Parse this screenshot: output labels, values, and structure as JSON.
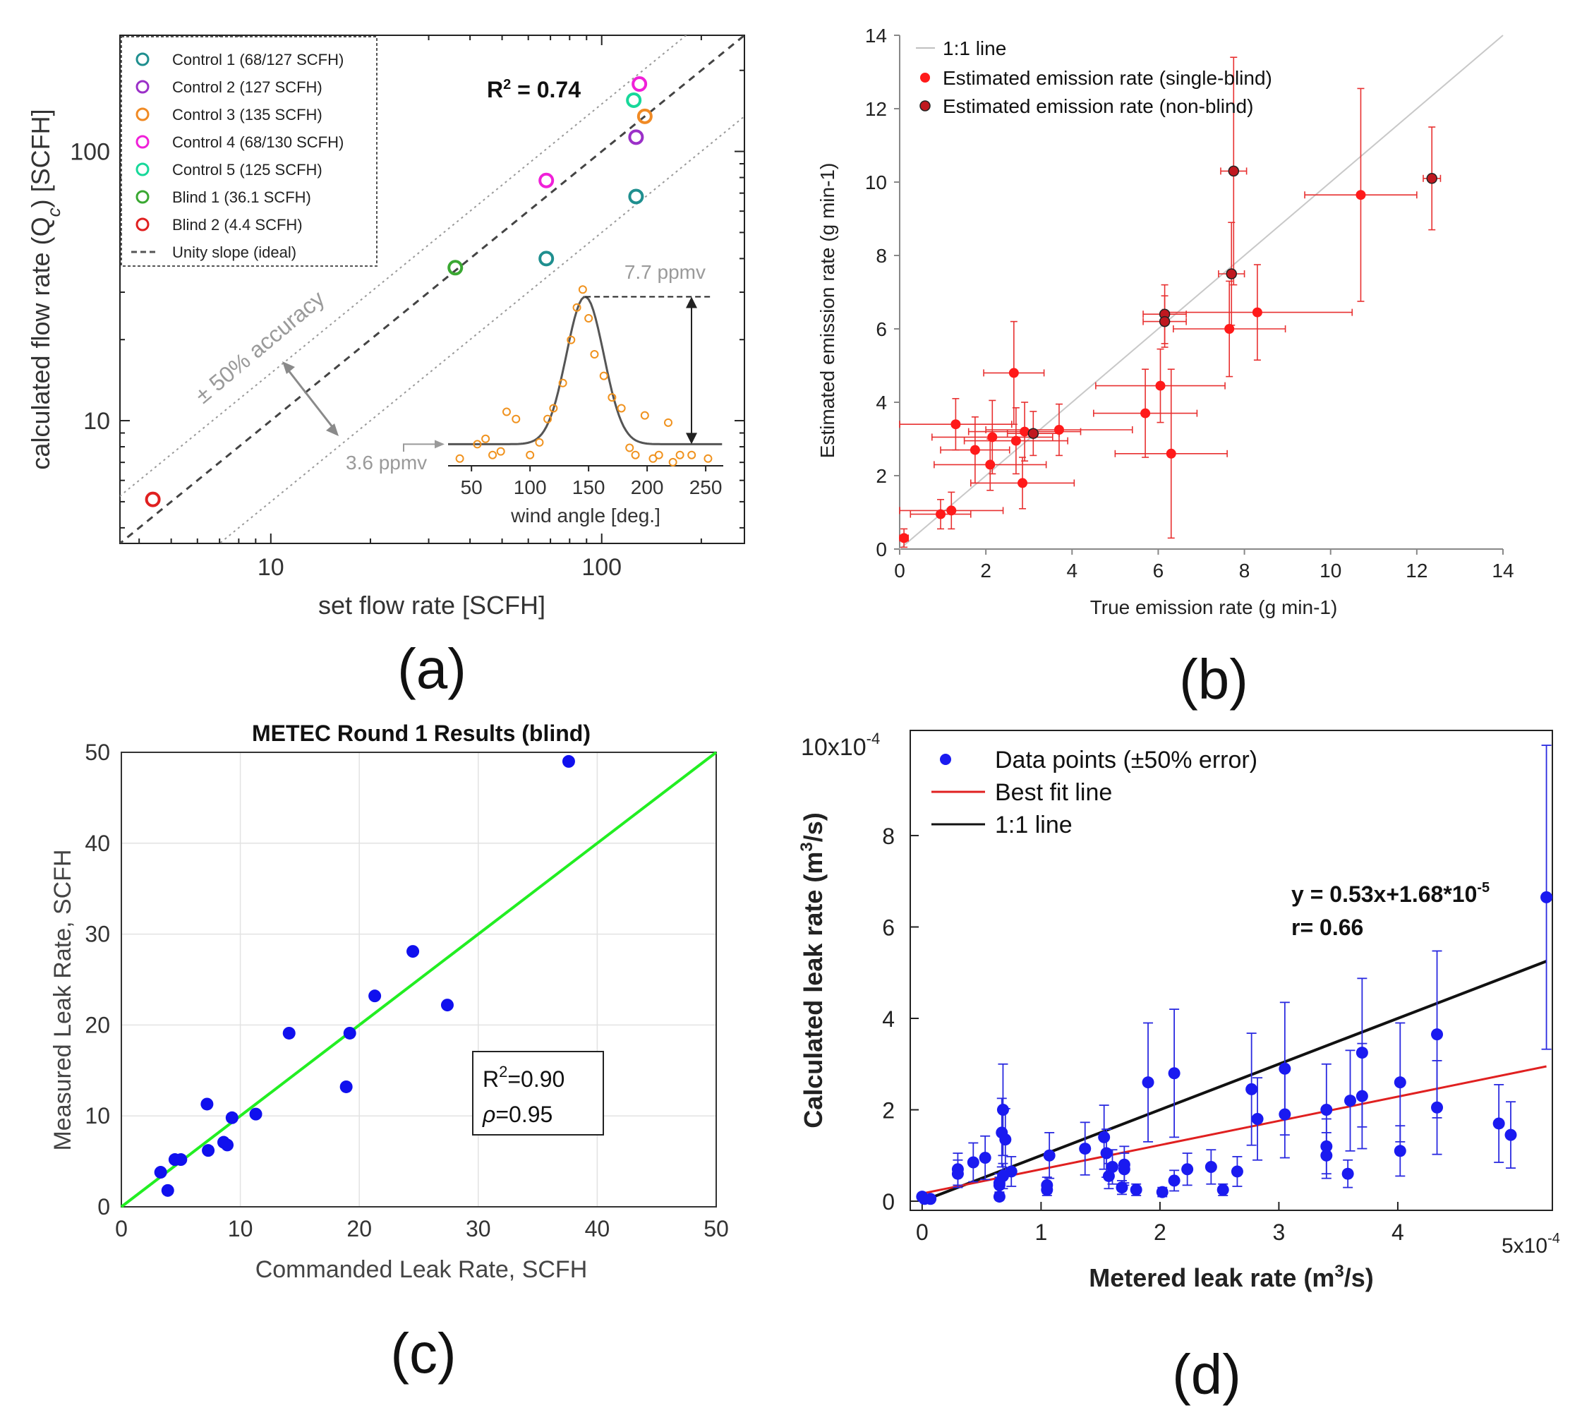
{
  "chart_data": [
    {
      "id": "a",
      "type": "scatter",
      "panel_label": "(a)",
      "xlabel": "set flow rate [SCFH]",
      "ylabel": "calculated flow rate (Q",
      "ylabel_sub": "c",
      "ylabel_end": ") [SCFH]",
      "xscale": "log",
      "yscale": "log",
      "xlim": [
        3.5,
        270
      ],
      "ylim": [
        3.5,
        270
      ],
      "xticks": [
        {
          "v": 10,
          "label": "10"
        },
        {
          "v": 100,
          "label": "100"
        }
      ],
      "yticks": [
        {
          "v": 10,
          "label": "10"
        },
        {
          "v": 100,
          "label": "100"
        }
      ],
      "r2_label": "R",
      "r2_sup": "2",
      "r2_value": " = 0.74",
      "accuracy_label": "± 50% accuracy",
      "legend_position": "top-left",
      "series": [
        {
          "name": "Control 1 (68/127 SCFH)",
          "color": "#1f8f8f",
          "points": [
            [
              68,
              40
            ],
            [
              127,
              68
            ]
          ]
        },
        {
          "name": "Control 2 (127 SCFH)",
          "color": "#9b30c8",
          "points": [
            [
              127,
              113
            ]
          ]
        },
        {
          "name": "Control 3 (135 SCFH)",
          "color": "#f08a24",
          "points": [
            [
              135,
              135
            ]
          ]
        },
        {
          "name": "Control 4 (68/130 SCFH)",
          "color": "#f020d8",
          "points": [
            [
              68,
              78
            ],
            [
              130,
              178
            ]
          ]
        },
        {
          "name": "Control 5 (125 SCFH)",
          "color": "#17d89a",
          "points": [
            [
              125,
              155
            ]
          ]
        },
        {
          "name": "Blind 1 (36.1 SCFH)",
          "color": "#3aa832",
          "points": [
            [
              36.1,
              37
            ]
          ]
        },
        {
          "name": "Blind 2 (4.4 SCFH)",
          "color": "#e02020",
          "points": [
            [
              4.4,
              5.1
            ]
          ]
        }
      ],
      "unity_label": "Unity slope (ideal)",
      "inset": {
        "xlabel": "wind angle [deg.]",
        "xlim": [
          30,
          265
        ],
        "xticks": [
          50,
          100,
          150,
          200,
          250
        ],
        "baseline_label": "3.6 ppmv",
        "peak_label": "7.7 ppmv",
        "gauss_center": 147,
        "gauss_sigma": 16,
        "points": [
          [
            40,
            3.2
          ],
          [
            55,
            3.6
          ],
          [
            62,
            3.75
          ],
          [
            68,
            3.3
          ],
          [
            75,
            3.4
          ],
          [
            80,
            4.5
          ],
          [
            88,
            4.3
          ],
          [
            100,
            3.3
          ],
          [
            108,
            3.65
          ],
          [
            115,
            4.3
          ],
          [
            120,
            4.6
          ],
          [
            128,
            5.3
          ],
          [
            135,
            6.5
          ],
          [
            140,
            7.4
          ],
          [
            145,
            7.9
          ],
          [
            150,
            7.1
          ],
          [
            155,
            6.1
          ],
          [
            163,
            5.5
          ],
          [
            170,
            4.9
          ],
          [
            178,
            4.6
          ],
          [
            185,
            3.5
          ],
          [
            190,
            3.3
          ],
          [
            198,
            4.4
          ],
          [
            205,
            3.2
          ],
          [
            210,
            3.3
          ],
          [
            218,
            4.2
          ],
          [
            222,
            3.1
          ],
          [
            228,
            3.3
          ],
          [
            238,
            3.3
          ],
          [
            252,
            3.2
          ]
        ]
      }
    },
    {
      "id": "b",
      "type": "scatter",
      "panel_label": "(b)",
      "xlabel": "True emission rate (g min-1)",
      "ylabel": "Estimated emission rate (g min-1)",
      "xlim": [
        0,
        14
      ],
      "ylim": [
        0,
        14
      ],
      "xticks": [
        0,
        2,
        4,
        6,
        8,
        10,
        12,
        14
      ],
      "yticks": [
        0,
        2,
        4,
        6,
        8,
        10,
        12,
        14
      ],
      "legend": [
        "1:1 line",
        "Estimated emission rate (single-blind)",
        "Estimated emission rate (non-blind)"
      ],
      "series": [
        {
          "name": "single-blind",
          "color": "#ff1a1a",
          "points": [
            [
              0.1,
              0.3,
              0.1,
              0.25
            ],
            [
              0.95,
              0.95,
              0.7,
              0.4
            ],
            [
              1.2,
              1.05,
              1.2,
              0.5
            ],
            [
              1.3,
              3.4,
              1.3,
              0.7
            ],
            [
              1.75,
              2.7,
              0.8,
              0.9
            ],
            [
              2.1,
              2.3,
              1.3,
              0.7
            ],
            [
              2.15,
              3.05,
              1.4,
              1.0
            ],
            [
              2.65,
              4.8,
              0.7,
              1.4
            ],
            [
              2.7,
              2.95,
              1.2,
              0.9
            ],
            [
              2.85,
              1.8,
              1.2,
              0.7
            ],
            [
              2.9,
              3.2,
              1.3,
              0.8
            ],
            [
              3.7,
              3.25,
              1.7,
              0.7
            ],
            [
              5.7,
              3.7,
              1.2,
              1.2
            ],
            [
              6.05,
              4.45,
              1.5,
              1.0
            ],
            [
              6.3,
              2.6,
              1.3,
              2.3
            ],
            [
              7.65,
              6.0,
              1.3,
              1.3
            ],
            [
              8.3,
              6.45,
              2.2,
              1.3
            ],
            [
              10.7,
              9.65,
              1.3,
              2.9
            ]
          ]
        },
        {
          "name": "non-blind",
          "color": "#c0181f",
          "points": [
            [
              3.1,
              3.15,
              0.6,
              0.6
            ],
            [
              6.15,
              6.4,
              0.5,
              0.8
            ],
            [
              6.15,
              6.2,
              0.5,
              0.7
            ],
            [
              7.7,
              7.5,
              0.3,
              1.4
            ],
            [
              7.75,
              10.3,
              0.3,
              3.1
            ],
            [
              12.35,
              10.1,
              0.2,
              1.4
            ]
          ]
        }
      ]
    },
    {
      "id": "c",
      "type": "scatter",
      "panel_label": "(c)",
      "title": "METEC Round 1 Results (blind)",
      "xlabel": "Commanded Leak Rate, SCFH",
      "ylabel": "Measured Leak Rate, SCFH",
      "xlim": [
        0,
        50
      ],
      "ylim": [
        0,
        50
      ],
      "xticks": [
        0,
        10,
        20,
        30,
        40,
        50
      ],
      "yticks": [
        0,
        10,
        20,
        30,
        40,
        50
      ],
      "grid": true,
      "stats_r2_prefix": "R",
      "stats_r2_sup": "2",
      "stats_r2_value": "=0.90",
      "stats_rho_symbol": "ρ",
      "stats_rho_value": "=0.95",
      "points": [
        [
          3.3,
          3.8
        ],
        [
          3.9,
          1.8
        ],
        [
          4.5,
          5.2
        ],
        [
          5.0,
          5.2
        ],
        [
          7.2,
          11.3
        ],
        [
          7.3,
          6.2
        ],
        [
          8.6,
          7.1
        ],
        [
          8.9,
          6.8
        ],
        [
          9.3,
          9.8
        ],
        [
          11.3,
          10.2
        ],
        [
          14.1,
          19.1
        ],
        [
          18.9,
          13.2
        ],
        [
          19.2,
          19.1
        ],
        [
          21.3,
          23.2
        ],
        [
          24.5,
          28.1
        ],
        [
          27.4,
          22.2
        ],
        [
          37.6,
          49.0
        ]
      ],
      "fit_line": [
        [
          0,
          0
        ],
        [
          50,
          50
        ]
      ]
    },
    {
      "id": "d",
      "type": "scatter",
      "panel_label": "(d)",
      "xlabel": "Metered leak rate (m",
      "xlabel_sup": "3",
      "xlabel_end": "/s)",
      "ylabel": "Calculated leak rate (m",
      "ylabel_sup": "3",
      "ylabel_end": "/s)",
      "xlim": [
        -0.1,
        5.3
      ],
      "ylim": [
        -0.2,
        10.3
      ],
      "x_unit_label": "5x10",
      "x_unit_exp": "-4",
      "y_unit_label": "10x10",
      "y_unit_exp": "-4",
      "xticks": [
        0,
        1,
        2,
        3,
        4
      ],
      "yticks": [
        0,
        2,
        4,
        6,
        8
      ],
      "legend": [
        "Data points (±50% error)",
        "Best fit line",
        "1:1 line"
      ],
      "equation": "y = 0.53x+1.68*10",
      "equation_exp": "-5",
      "r_label": "r= 0.66",
      "best_fit": [
        [
          0,
          0.168
        ],
        [
          5.25,
          2.95
        ]
      ],
      "unity": [
        [
          0,
          0
        ],
        [
          5.25,
          5.25
        ]
      ],
      "points": [
        [
          0.0,
          0.1
        ],
        [
          0.02,
          0.05
        ],
        [
          0.07,
          0.05
        ],
        [
          0.3,
          0.6
        ],
        [
          0.3,
          0.7
        ],
        [
          0.43,
          0.85
        ],
        [
          0.53,
          0.95
        ],
        [
          0.65,
          0.1
        ],
        [
          0.65,
          0.35
        ],
        [
          0.65,
          0.4
        ],
        [
          0.68,
          0.55
        ],
        [
          0.67,
          1.5
        ],
        [
          0.68,
          2.0
        ],
        [
          0.7,
          1.35
        ],
        [
          0.75,
          0.65
        ],
        [
          1.05,
          0.25
        ],
        [
          1.05,
          0.35
        ],
        [
          1.07,
          1.0
        ],
        [
          1.37,
          1.15
        ],
        [
          1.53,
          1.4
        ],
        [
          1.55,
          1.05
        ],
        [
          1.57,
          0.55
        ],
        [
          1.6,
          0.75
        ],
        [
          1.68,
          0.3
        ],
        [
          1.7,
          0.7
        ],
        [
          1.7,
          0.8
        ],
        [
          1.8,
          0.25
        ],
        [
          1.9,
          2.6
        ],
        [
          2.02,
          0.2
        ],
        [
          2.12,
          0.45
        ],
        [
          2.12,
          2.8
        ],
        [
          2.23,
          0.7
        ],
        [
          2.43,
          0.75
        ],
        [
          2.53,
          0.25
        ],
        [
          2.65,
          0.65
        ],
        [
          2.77,
          2.45
        ],
        [
          2.82,
          1.8
        ],
        [
          3.05,
          2.9
        ],
        [
          3.05,
          1.9
        ],
        [
          3.4,
          2.0
        ],
        [
          3.4,
          1.0
        ],
        [
          3.4,
          1.2
        ],
        [
          3.58,
          0.6
        ],
        [
          3.6,
          2.2
        ],
        [
          3.7,
          2.3
        ],
        [
          3.7,
          3.25
        ],
        [
          4.02,
          2.6
        ],
        [
          4.02,
          1.1
        ],
        [
          4.33,
          3.65
        ],
        [
          4.33,
          2.05
        ],
        [
          4.85,
          1.7
        ],
        [
          4.95,
          1.45
        ],
        [
          5.25,
          6.65
        ]
      ]
    }
  ]
}
